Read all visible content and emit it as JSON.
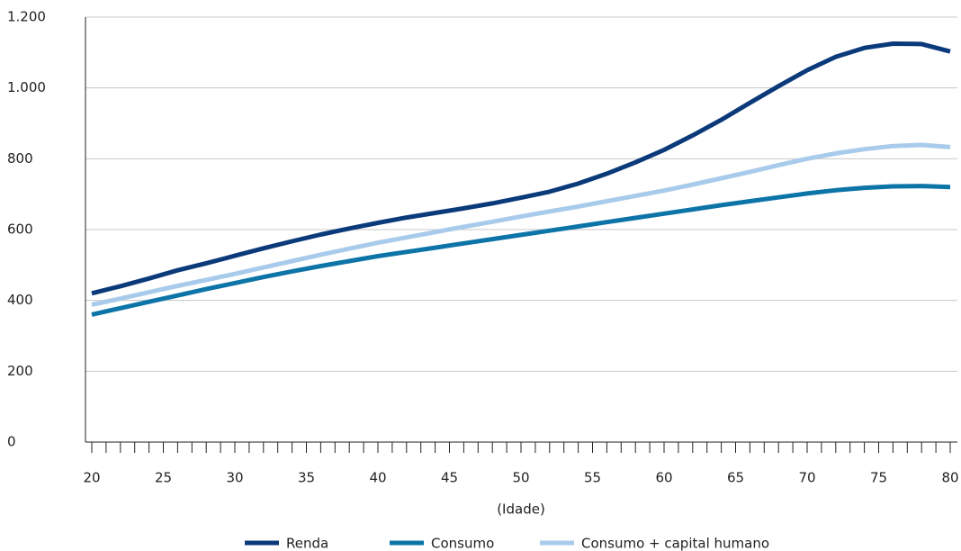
{
  "chart_data": {
    "type": "line",
    "x_label": "(Idade)",
    "x": [
      20,
      22,
      24,
      26,
      28,
      30,
      32,
      34,
      36,
      38,
      40,
      42,
      44,
      46,
      48,
      50,
      52,
      54,
      56,
      58,
      60,
      62,
      64,
      66,
      68,
      70,
      72,
      74,
      76,
      78,
      80
    ],
    "series": [
      {
        "name": "Renda",
        "color": "#0b3a7a",
        "values": [
          420,
          440,
          462,
          485,
          505,
          526,
          547,
          567,
          586,
          603,
          619,
          634,
          647,
          660,
          674,
          690,
          707,
          730,
          758,
          790,
          825,
          866,
          910,
          958,
          1005,
          1050,
          1088,
          1113,
          1125,
          1124,
          1103
        ]
      },
      {
        "name": "Consumo",
        "color": "#0d74a8",
        "values": [
          360,
          378,
          396,
          414,
          432,
          449,
          466,
          482,
          497,
          511,
          525,
          537,
          549,
          561,
          573,
          585,
          597,
          609,
          621,
          633,
          645,
          657,
          669,
          680,
          691,
          702,
          711,
          718,
          722,
          723,
          720
        ]
      },
      {
        "name": "Consumo + capital humano",
        "color": "#a9cbeb",
        "values": [
          388,
          405,
          423,
          441,
          458,
          475,
          493,
          511,
          529,
          546,
          563,
          578,
          593,
          608,
          622,
          637,
          651,
          665,
          680,
          695,
          710,
          727,
          745,
          763,
          782,
          800,
          815,
          827,
          836,
          839,
          833
        ]
      }
    ],
    "xlim": [
      20,
      80
    ],
    "xticks": [
      20,
      25,
      30,
      35,
      40,
      45,
      50,
      55,
      60,
      65,
      70,
      75,
      80
    ],
    "xminorticks": [
      20,
      21,
      22,
      23,
      24,
      25,
      26,
      27,
      28,
      29,
      30,
      31,
      32,
      33,
      34,
      35,
      36,
      37,
      38,
      39,
      40,
      41,
      42,
      43,
      44,
      45,
      46,
      47,
      48,
      49,
      50,
      51,
      52,
      53,
      54,
      55,
      56,
      57,
      58,
      59,
      60,
      61,
      62,
      63,
      64,
      65,
      66,
      67,
      68,
      69,
      70,
      71,
      72,
      73,
      74,
      75,
      76,
      77,
      78,
      79,
      80
    ],
    "ylim": [
      0,
      1200
    ],
    "yticks": [
      0,
      200,
      400,
      600,
      800,
      {
        "value": 1000,
        "label": "1.000"
      },
      {
        "value": 1200,
        "label": "1.200"
      }
    ],
    "grid": true,
    "legend": "bottom"
  }
}
